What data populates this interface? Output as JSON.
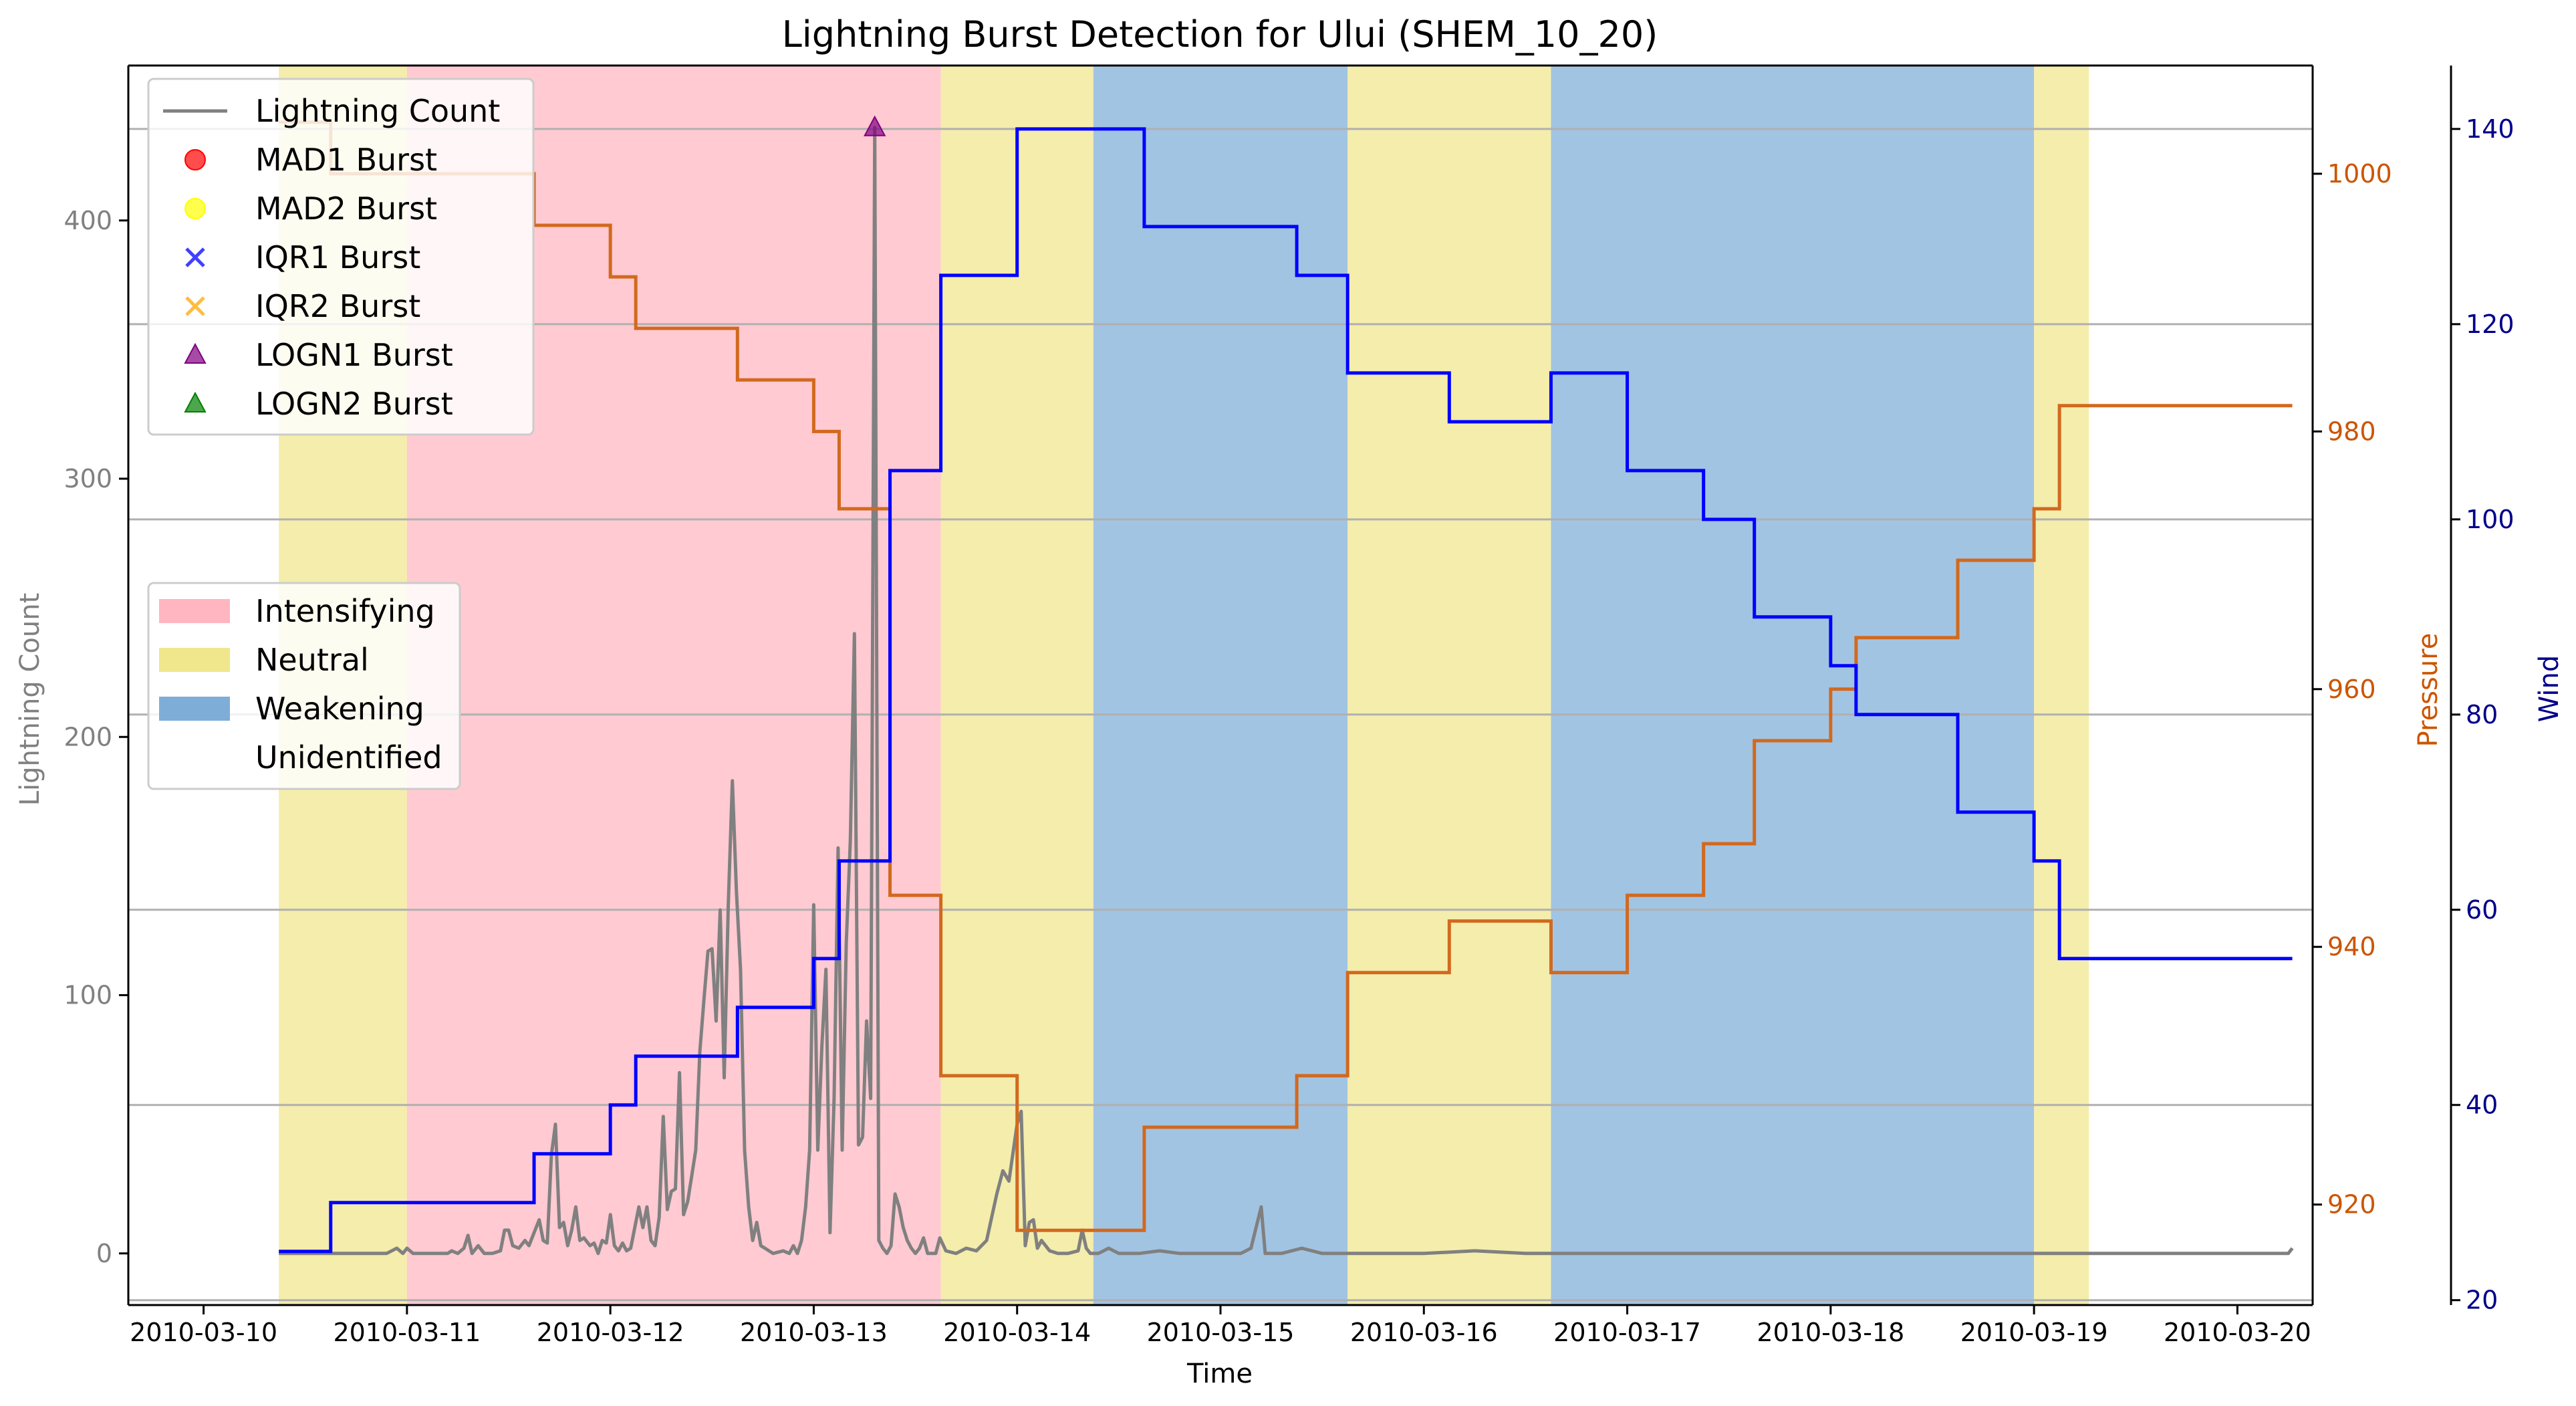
{
  "chart_data": {
    "type": "line",
    "title": "Lightning Burst Detection for Ului (SHEM_10_20)",
    "xlabel": "Time",
    "ylabel_left": "Lightning Count",
    "ylabel_pressure": "Pressure",
    "ylabel_wind": "Wind",
    "x_ticks": [
      "2010-03-10",
      "2010-03-11",
      "2010-03-12",
      "2010-03-13",
      "2010-03-14",
      "2010-03-15",
      "2010-03-16",
      "2010-03-17",
      "2010-03-18",
      "2010-03-19",
      "2010-03-20"
    ],
    "xlim": [
      -0.37,
      10.37
    ],
    "ylim_left": [
      -20,
      460
    ],
    "y_ticks_left": [
      0,
      100,
      200,
      300,
      400
    ],
    "ylim_pressure": [
      912.2,
      1008.4
    ],
    "y_ticks_pressure": [
      920,
      940,
      960,
      980,
      1000
    ],
    "ylim_wind": [
      19.5,
      146.5
    ],
    "y_ticks_wind": [
      20,
      40,
      60,
      80,
      100,
      120,
      140
    ],
    "grid": "horizontal lines at wind ticks",
    "colors": {
      "lightning": "#808080",
      "pressure": "#d2691e",
      "wind": "#0000ff",
      "pressure_axis": "#cc5500",
      "wind_axis": "#00008b",
      "intensifying": "#ffb6c1",
      "neutral": "#f0e68c",
      "weakening": "#7eadd8",
      "mad1": "#ff0000",
      "mad2": "#ffff00",
      "iqr1": "#0000ff",
      "iqr2": "#ffa500",
      "logn1": "#800080",
      "logn2": "#008000"
    },
    "phases": [
      {
        "label": "Neutral",
        "start": 0.37,
        "end": 1.0
      },
      {
        "label": "Intensifying",
        "start": 1.0,
        "end": 3.625
      },
      {
        "label": "Neutral",
        "start": 3.625,
        "end": 4.375
      },
      {
        "label": "Weakening",
        "start": 4.375,
        "end": 5.625
      },
      {
        "label": "Neutral",
        "start": 5.625,
        "end": 6.625
      },
      {
        "label": "Weakening",
        "start": 6.625,
        "end": 9.0
      },
      {
        "label": "Neutral",
        "start": 9.0,
        "end": 9.27
      }
    ],
    "pressure_steps": [
      {
        "x": 0.37,
        "y": 1004
      },
      {
        "x": 0.625,
        "y": 1000
      },
      {
        "x": 1.625,
        "y": 996
      },
      {
        "x": 2.0,
        "y": 992
      },
      {
        "x": 2.125,
        "y": 988
      },
      {
        "x": 2.625,
        "y": 984
      },
      {
        "x": 3.0,
        "y": 980
      },
      {
        "x": 3.125,
        "y": 974
      },
      {
        "x": 3.375,
        "y": 944
      },
      {
        "x": 3.625,
        "y": 930
      },
      {
        "x": 4.0,
        "y": 918
      },
      {
        "x": 4.625,
        "y": 926
      },
      {
        "x": 5.375,
        "y": 930
      },
      {
        "x": 5.625,
        "y": 938
      },
      {
        "x": 6.125,
        "y": 942
      },
      {
        "x": 6.625,
        "y": 938
      },
      {
        "x": 7.0,
        "y": 944
      },
      {
        "x": 7.375,
        "y": 948
      },
      {
        "x": 7.625,
        "y": 956
      },
      {
        "x": 8.0,
        "y": 960
      },
      {
        "x": 8.125,
        "y": 964
      },
      {
        "x": 8.625,
        "y": 970
      },
      {
        "x": 9.0,
        "y": 974
      },
      {
        "x": 9.125,
        "y": 982
      },
      {
        "x": 10.27,
        "y": 982
      }
    ],
    "wind_steps": [
      {
        "x": 0.37,
        "y": 25
      },
      {
        "x": 0.625,
        "y": 30
      },
      {
        "x": 1.625,
        "y": 35
      },
      {
        "x": 2.0,
        "y": 40
      },
      {
        "x": 2.125,
        "y": 45
      },
      {
        "x": 2.625,
        "y": 50
      },
      {
        "x": 3.0,
        "y": 55
      },
      {
        "x": 3.125,
        "y": 65
      },
      {
        "x": 3.375,
        "y": 105
      },
      {
        "x": 3.625,
        "y": 125
      },
      {
        "x": 4.0,
        "y": 140
      },
      {
        "x": 4.625,
        "y": 130
      },
      {
        "x": 5.375,
        "y": 125
      },
      {
        "x": 5.625,
        "y": 115
      },
      {
        "x": 6.125,
        "y": 110
      },
      {
        "x": 6.625,
        "y": 115
      },
      {
        "x": 7.0,
        "y": 105
      },
      {
        "x": 7.375,
        "y": 100
      },
      {
        "x": 7.625,
        "y": 90
      },
      {
        "x": 8.0,
        "y": 85
      },
      {
        "x": 8.125,
        "y": 80
      },
      {
        "x": 8.625,
        "y": 70
      },
      {
        "x": 9.0,
        "y": 65
      },
      {
        "x": 9.125,
        "y": 55
      },
      {
        "x": 10.27,
        "y": 55
      }
    ],
    "lightning": [
      [
        0.37,
        0
      ],
      [
        0.5,
        0
      ],
      [
        0.6,
        0
      ],
      [
        0.7,
        0
      ],
      [
        0.8,
        0
      ],
      [
        0.9,
        0
      ],
      [
        0.95,
        2
      ],
      [
        0.98,
        0
      ],
      [
        1.0,
        2
      ],
      [
        1.03,
        0
      ],
      [
        1.1,
        0
      ],
      [
        1.15,
        0
      ],
      [
        1.2,
        0
      ],
      [
        1.22,
        1
      ],
      [
        1.25,
        0
      ],
      [
        1.28,
        2
      ],
      [
        1.3,
        7
      ],
      [
        1.32,
        0
      ],
      [
        1.35,
        3
      ],
      [
        1.38,
        0
      ],
      [
        1.42,
        0
      ],
      [
        1.46,
        1
      ],
      [
        1.48,
        9
      ],
      [
        1.5,
        9
      ],
      [
        1.52,
        3
      ],
      [
        1.55,
        2
      ],
      [
        1.58,
        5
      ],
      [
        1.6,
        3
      ],
      [
        1.62,
        7
      ],
      [
        1.65,
        13
      ],
      [
        1.67,
        5
      ],
      [
        1.69,
        4
      ],
      [
        1.71,
        38
      ],
      [
        1.73,
        50
      ],
      [
        1.75,
        10
      ],
      [
        1.77,
        12
      ],
      [
        1.79,
        3
      ],
      [
        1.81,
        9
      ],
      [
        1.83,
        18
      ],
      [
        1.85,
        5
      ],
      [
        1.87,
        6
      ],
      [
        1.9,
        3
      ],
      [
        1.92,
        4
      ],
      [
        1.94,
        0
      ],
      [
        1.96,
        5
      ],
      [
        1.98,
        4
      ],
      [
        2.0,
        15
      ],
      [
        2.02,
        3
      ],
      [
        2.04,
        1
      ],
      [
        2.06,
        4
      ],
      [
        2.08,
        1
      ],
      [
        2.1,
        2
      ],
      [
        2.12,
        10
      ],
      [
        2.14,
        18
      ],
      [
        2.16,
        10
      ],
      [
        2.18,
        18
      ],
      [
        2.2,
        5
      ],
      [
        2.22,
        3
      ],
      [
        2.24,
        14
      ],
      [
        2.26,
        53
      ],
      [
        2.28,
        17
      ],
      [
        2.3,
        24
      ],
      [
        2.32,
        25
      ],
      [
        2.34,
        70
      ],
      [
        2.36,
        15
      ],
      [
        2.38,
        20
      ],
      [
        2.4,
        30
      ],
      [
        2.42,
        40
      ],
      [
        2.44,
        78
      ],
      [
        2.46,
        98
      ],
      [
        2.48,
        117
      ],
      [
        2.5,
        118
      ],
      [
        2.52,
        90
      ],
      [
        2.54,
        133
      ],
      [
        2.56,
        68
      ],
      [
        2.58,
        135
      ],
      [
        2.6,
        183
      ],
      [
        2.62,
        140
      ],
      [
        2.64,
        110
      ],
      [
        2.66,
        40
      ],
      [
        2.68,
        18
      ],
      [
        2.7,
        5
      ],
      [
        2.72,
        12
      ],
      [
        2.74,
        3
      ],
      [
        2.76,
        2
      ],
      [
        2.8,
        0
      ],
      [
        2.85,
        1
      ],
      [
        2.88,
        0
      ],
      [
        2.9,
        3
      ],
      [
        2.92,
        0
      ],
      [
        2.94,
        5
      ],
      [
        2.96,
        18
      ],
      [
        2.98,
        40
      ],
      [
        3.0,
        135
      ],
      [
        3.02,
        40
      ],
      [
        3.04,
        80
      ],
      [
        3.06,
        110
      ],
      [
        3.08,
        8
      ],
      [
        3.1,
        60
      ],
      [
        3.12,
        157
      ],
      [
        3.14,
        40
      ],
      [
        3.16,
        120
      ],
      [
        3.18,
        160
      ],
      [
        3.2,
        240
      ],
      [
        3.22,
        42
      ],
      [
        3.24,
        45
      ],
      [
        3.26,
        90
      ],
      [
        3.28,
        60
      ],
      [
        3.3,
        436
      ],
      [
        3.32,
        5
      ],
      [
        3.34,
        2
      ],
      [
        3.36,
        0
      ],
      [
        3.38,
        3
      ],
      [
        3.4,
        23
      ],
      [
        3.42,
        18
      ],
      [
        3.44,
        10
      ],
      [
        3.46,
        5
      ],
      [
        3.48,
        2
      ],
      [
        3.5,
        0
      ],
      [
        3.52,
        2
      ],
      [
        3.54,
        6
      ],
      [
        3.56,
        0
      ],
      [
        3.6,
        0
      ],
      [
        3.62,
        6
      ],
      [
        3.65,
        1
      ],
      [
        3.7,
        0
      ],
      [
        3.75,
        2
      ],
      [
        3.8,
        1
      ],
      [
        3.85,
        5
      ],
      [
        3.9,
        23
      ],
      [
        3.93,
        32
      ],
      [
        3.96,
        28
      ],
      [
        4.0,
        50
      ],
      [
        4.02,
        55
      ],
      [
        4.04,
        3
      ],
      [
        4.06,
        12
      ],
      [
        4.08,
        13
      ],
      [
        4.1,
        2
      ],
      [
        4.12,
        5
      ],
      [
        4.14,
        3
      ],
      [
        4.16,
        1
      ],
      [
        4.2,
        0
      ],
      [
        4.25,
        0
      ],
      [
        4.3,
        1
      ],
      [
        4.32,
        9
      ],
      [
        4.34,
        2
      ],
      [
        4.36,
        0
      ],
      [
        4.4,
        0
      ],
      [
        4.45,
        2
      ],
      [
        4.5,
        0
      ],
      [
        4.55,
        0
      ],
      [
        4.6,
        0
      ],
      [
        4.7,
        1
      ],
      [
        4.8,
        0
      ],
      [
        5.0,
        0
      ],
      [
        5.1,
        0
      ],
      [
        5.15,
        2
      ],
      [
        5.2,
        18
      ],
      [
        5.22,
        0
      ],
      [
        5.3,
        0
      ],
      [
        5.4,
        2
      ],
      [
        5.5,
        0
      ],
      [
        6.0,
        0
      ],
      [
        6.25,
        1
      ],
      [
        6.5,
        0
      ],
      [
        7.0,
        0
      ],
      [
        8.0,
        0
      ],
      [
        9.0,
        0
      ],
      [
        10.0,
        0
      ],
      [
        10.25,
        0
      ],
      [
        10.27,
        2
      ]
    ],
    "bursts": [
      {
        "method": "LOGN1 Burst",
        "x": 3.3,
        "y": 436
      }
    ],
    "legend_markers": [
      {
        "label": "Lightning Count",
        "kind": "line",
        "color": "#808080"
      },
      {
        "label": "MAD1 Burst",
        "kind": "circle",
        "color": "#ff0000"
      },
      {
        "label": "MAD2 Burst",
        "kind": "circle",
        "color": "#ffff00"
      },
      {
        "label": "IQR1 Burst",
        "kind": "x",
        "color": "#0000ff"
      },
      {
        "label": "IQR2 Burst",
        "kind": "x",
        "color": "#ffa500"
      },
      {
        "label": "LOGN1 Burst",
        "kind": "triangle",
        "color": "#800080"
      },
      {
        "label": "LOGN2 Burst",
        "kind": "triangle",
        "color": "#008000"
      }
    ],
    "legend_phases": [
      {
        "label": "Intensifying",
        "color": "#ffb6c1"
      },
      {
        "label": "Neutral",
        "color": "#f0e68c"
      },
      {
        "label": "Weakening",
        "color": "#7eadd8"
      },
      {
        "label": "Unidentified",
        "color": "#ffffff"
      }
    ],
    "legend_placement": "upper-left and center-left"
  }
}
